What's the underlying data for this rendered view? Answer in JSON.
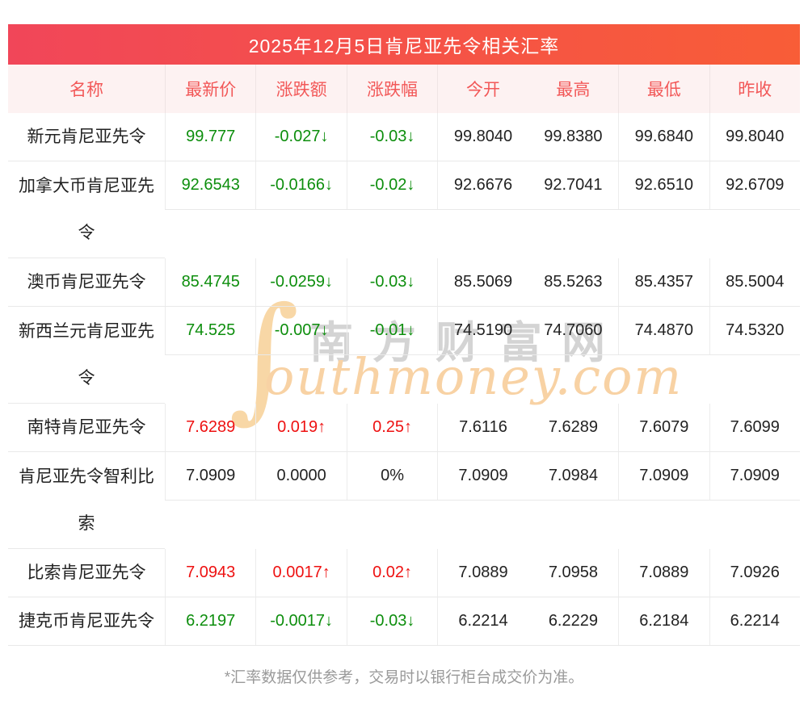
{
  "title": "2025年12月5日肯尼亚先令相关汇率",
  "table": {
    "columns": [
      "名称",
      "最新价",
      "涨跌额",
      "涨跌幅",
      "今开",
      "最高",
      "最低",
      "昨收"
    ],
    "rows": [
      {
        "name": "新元肯尼亚先令",
        "latest": "99.777",
        "change": "-0.027↓",
        "change_pct": "-0.03↓",
        "open": "99.8040",
        "high": "99.8380",
        "low": "99.6840",
        "prev_close": "99.8040",
        "trend": "down",
        "tall": false
      },
      {
        "name": "加拿大币肯尼亚先令",
        "latest": "92.6543",
        "change": "-0.0166↓",
        "change_pct": "-0.02↓",
        "open": "92.6676",
        "high": "92.7041",
        "low": "92.6510",
        "prev_close": "92.6709",
        "trend": "down",
        "tall": true
      },
      {
        "name": "澳币肯尼亚先令",
        "latest": "85.4745",
        "change": "-0.0259↓",
        "change_pct": "-0.03↓",
        "open": "85.5069",
        "high": "85.5263",
        "low": "85.4357",
        "prev_close": "85.5004",
        "trend": "down",
        "tall": false
      },
      {
        "name": "新西兰元肯尼亚先令",
        "latest": "74.525",
        "change": "-0.007↓",
        "change_pct": "-0.01↓",
        "open": "74.5190",
        "high": "74.7060",
        "low": "74.4870",
        "prev_close": "74.5320",
        "trend": "down",
        "tall": true
      },
      {
        "name": "南特肯尼亚先令",
        "latest": "7.6289",
        "change": "0.019↑",
        "change_pct": "0.25↑",
        "open": "7.6116",
        "high": "7.6289",
        "low": "7.6079",
        "prev_close": "7.6099",
        "trend": "up",
        "tall": false
      },
      {
        "name": "肯尼亚先令智利比索",
        "latest": "7.0909",
        "change": "0.0000",
        "change_pct": "0%",
        "open": "7.0909",
        "high": "7.0984",
        "low": "7.0909",
        "prev_close": "7.0909",
        "trend": "flat",
        "tall": true
      },
      {
        "name": "比索肯尼亚先令",
        "latest": "7.0943",
        "change": "0.0017↑",
        "change_pct": "0.02↑",
        "open": "7.0889",
        "high": "7.0958",
        "low": "7.0889",
        "prev_close": "7.0926",
        "trend": "up",
        "tall": false
      },
      {
        "name": "捷克币肯尼亚先令",
        "latest": "6.2197",
        "change": "-0.0017↓",
        "change_pct": "-0.03↓",
        "open": "6.2214",
        "high": "6.2229",
        "low": "6.2184",
        "prev_close": "6.2214",
        "trend": "down",
        "tall": false
      }
    ]
  },
  "watermark": {
    "swash": "∫",
    "cn": "南方财富网",
    "en": "outhmoney.com"
  },
  "footer": "*汇率数据仅供参考，交易时以银行柜台成交价为准。",
  "colors": {
    "up": "#ee1111",
    "down": "#0d8e0d",
    "flat": "#222222",
    "title_gradient_left": "#f14659",
    "title_gradient_right": "#f85d37",
    "header_row_bg": "#fdf2f2",
    "header_row_text": "#f25858"
  }
}
